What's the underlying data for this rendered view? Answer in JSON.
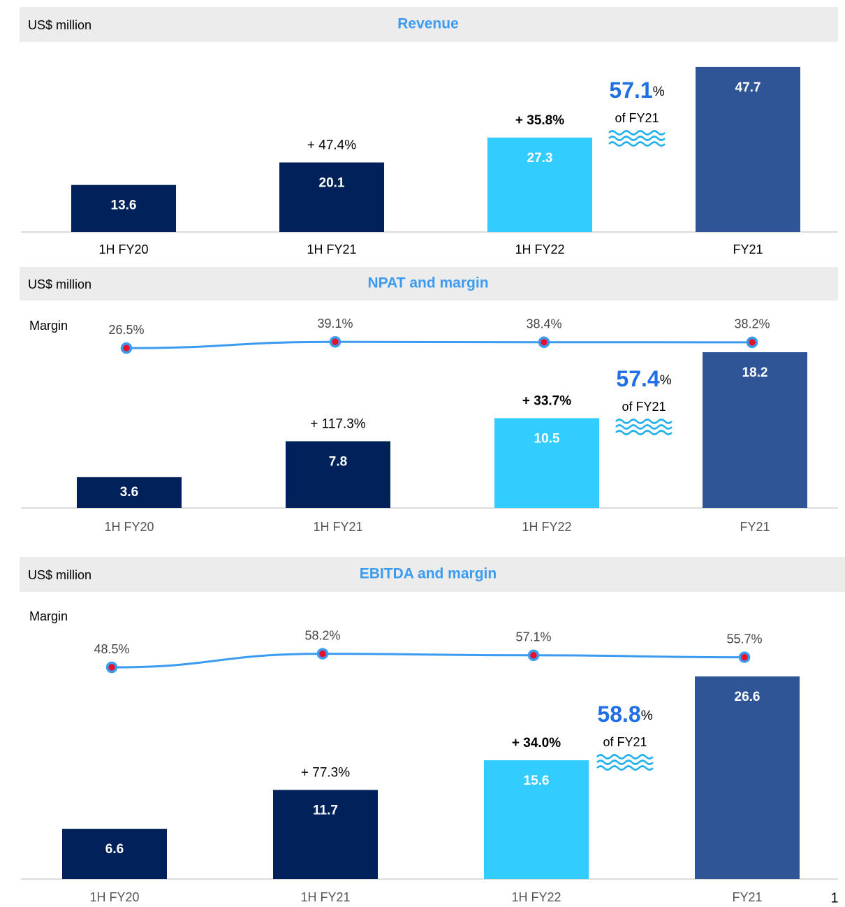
{
  "chart_data": [
    {
      "type": "bar",
      "title": "Revenue",
      "unit_label": "US$ million",
      "categories": [
        "1H FY20",
        "1H FY21",
        "1H FY22",
        "FY21"
      ],
      "values": [
        13.6,
        20.1,
        27.3,
        47.7
      ],
      "colors": [
        "#00215a",
        "#00215a",
        "#33ccff",
        "#2f5597"
      ],
      "growth_labels": [
        null,
        "+ 47.4%",
        "+ 35.8%",
        null
      ],
      "share": 57.1,
      "share_unit": "%",
      "share_text": "of FY21"
    },
    {
      "type": "bar",
      "title": "NPAT and margin",
      "unit_label": "US$ million",
      "categories": [
        "1H FY20",
        "1H FY21",
        "1H FY22",
        "FY21"
      ],
      "values": [
        3.6,
        7.8,
        10.5,
        18.2
      ],
      "colors": [
        "#00215a",
        "#00215a",
        "#33ccff",
        "#2f5597"
      ],
      "growth_labels": [
        null,
        "+ 117.3%",
        "+ 33.7%",
        null
      ],
      "share": 57.4,
      "share_unit": "%",
      "share_text": "of FY21",
      "margin": {
        "name": "Margin",
        "color": "#3a9bf0",
        "marker_color": "#e8112d",
        "values": [
          26.5,
          39.1,
          38.4,
          38.2
        ],
        "value_labels": [
          "26.5%",
          "39.1%",
          "38.4%",
          "38.2%"
        ]
      }
    },
    {
      "type": "bar",
      "title": "EBITDA and margin",
      "unit_label": "US$ million",
      "categories": [
        "1H FY20",
        "1H FY21",
        "1H FY22",
        "FY21"
      ],
      "values": [
        6.6,
        11.7,
        15.6,
        26.6
      ],
      "colors": [
        "#00215a",
        "#00215a",
        "#33ccff",
        "#2f5597"
      ],
      "growth_labels": [
        null,
        "+ 77.3%",
        "+ 34.0%",
        null
      ],
      "share": 58.8,
      "share_unit": "%",
      "share_text": "of FY21",
      "margin": {
        "name": "Margin",
        "color": "#3a9bf0",
        "marker_color": "#e8112d",
        "values": [
          48.5,
          58.2,
          57.1,
          55.7
        ],
        "value_labels": [
          "48.5%",
          "58.2%",
          "57.1%",
          "55.7%"
        ]
      }
    }
  ],
  "page_number": "1"
}
